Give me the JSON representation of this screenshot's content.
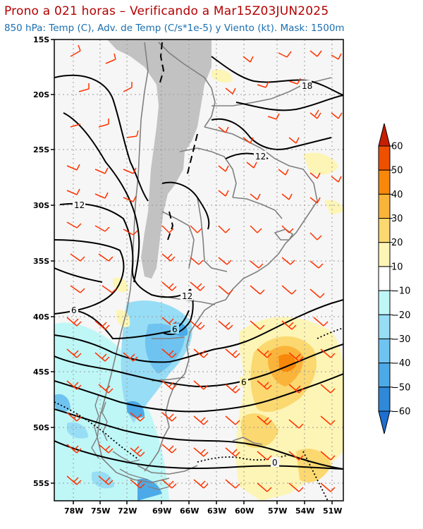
{
  "title": "Prono a 021 horas – Verificando a Mar15Z03JUN2025",
  "subtitle": "850 hPa: Temp (C), Adv. de Temp (C/s*1e-5) y Viento (kt). Mask: 1500m",
  "axes": {
    "lat_labels": [
      "15S",
      "20S",
      "25S",
      "30S",
      "35S",
      "40S",
      "45S",
      "50S",
      "55S"
    ],
    "lon_labels": [
      "78W",
      "75W",
      "72W",
      "69W",
      "66W",
      "63W",
      "60W",
      "57W",
      "54W",
      "51W"
    ]
  },
  "colorbar": {
    "labels": [
      "60",
      "50",
      "40",
      "30",
      "20",
      "10",
      "−10",
      "−20",
      "−30",
      "−40",
      "−50",
      "−60"
    ],
    "colors": [
      "#c81e00",
      "#ee5000",
      "#f8880a",
      "#fbb43a",
      "#fbd870",
      "#fdf5b5",
      "#ffffff",
      "#bff7f7",
      "#97ddf5",
      "#6fc3f0",
      "#4caae8",
      "#2f88d8",
      "#1e6fcf"
    ]
  },
  "contour_labels": [
    "18",
    "12",
    "12",
    "12",
    "6",
    "6",
    "6",
    "0"
  ],
  "colors": {
    "title": "#b30000",
    "subtitle": "#1a6fb0",
    "terrain_mask": "#c2c2c2",
    "wind_barbs": "#ff3300",
    "contours": "#000000",
    "borders": "#808080"
  }
}
